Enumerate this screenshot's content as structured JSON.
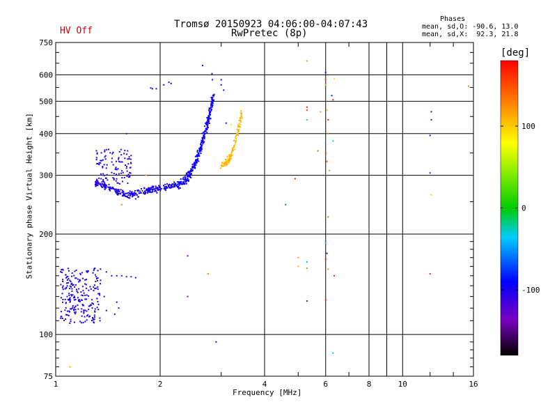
{
  "header": {
    "title_line1": "Tromsø 20150923 04:06:00-04:07:43",
    "title_line2": "RwPretec (8p)",
    "status": "HV Off",
    "legend_title": "Phases",
    "legend_o": "mean, sd,O: -90.6, 13.0",
    "legend_x": "mean, sd,X:  92.3, 21.8"
  },
  "colorbar": {
    "title": "[deg]",
    "ticks": [
      "100",
      "0",
      "-100"
    ],
    "tick_values": [
      100,
      0,
      -100
    ],
    "range": [
      -180,
      180
    ]
  },
  "chart_data": {
    "type": "scatter",
    "xlabel": "Frequency [MHz]",
    "ylabel": "Stationary phase Virtual Height [km]",
    "xscale": "log",
    "yscale": "log",
    "xlim": [
      1,
      16
    ],
    "ylim": [
      75,
      750
    ],
    "xticks": [
      1,
      2,
      4,
      6,
      8,
      10,
      16
    ],
    "xtick_labels": [
      "1",
      "2",
      "4",
      "6",
      "8",
      "10",
      "16"
    ],
    "yticks": [
      75,
      100,
      200,
      300,
      400,
      500,
      600,
      750
    ],
    "ytick_labels": [
      "75",
      "100",
      "200",
      "300",
      "400",
      "500",
      "600",
      "750"
    ],
    "grid": true,
    "clusters": [
      {
        "kind": "curve",
        "f0": 1.3,
        "f1": 2.2,
        "h_start": 285,
        "h_mid": 262,
        "h_end": 280,
        "phase": -100,
        "n": 260,
        "spread": 0.035
      },
      {
        "kind": "rise",
        "f0": 2.2,
        "f1": 2.85,
        "h0": 280,
        "h1": 520,
        "phase": -95,
        "n": 320,
        "spread": 0.045
      },
      {
        "kind": "rise",
        "f0": 3.0,
        "f1": 3.45,
        "h0": 322,
        "h1": 470,
        "phase": 108,
        "n": 130,
        "spread": 0.03
      },
      {
        "kind": "blob",
        "f0": 1.03,
        "f1": 1.35,
        "h0": 108,
        "h1": 158,
        "phase": -100,
        "n": 230
      },
      {
        "kind": "blob",
        "f0": 1.3,
        "f1": 1.65,
        "h0": 280,
        "h1": 360,
        "phase": -102,
        "n": 110
      }
    ],
    "points": [
      {
        "x": 2.65,
        "y": 640,
        "phase": -100
      },
      {
        "x": 2.82,
        "y": 605,
        "phase": -95
      },
      {
        "x": 2.83,
        "y": 580,
        "phase": -92
      },
      {
        "x": 2.15,
        "y": 565,
        "phase": -100
      },
      {
        "x": 2.12,
        "y": 570,
        "phase": -110
      },
      {
        "x": 2.05,
        "y": 560,
        "phase": -100
      },
      {
        "x": 1.9,
        "y": 545,
        "phase": -100
      },
      {
        "x": 1.95,
        "y": 545,
        "phase": -100
      },
      {
        "x": 1.88,
        "y": 548,
        "phase": -100
      },
      {
        "x": 3.0,
        "y": 580,
        "phase": -90
      },
      {
        "x": 3.0,
        "y": 560,
        "phase": -90
      },
      {
        "x": 3.05,
        "y": 540,
        "phase": -100
      },
      {
        "x": 3.1,
        "y": 430,
        "phase": -100
      },
      {
        "x": 3.2,
        "y": 425,
        "phase": 90
      },
      {
        "x": 1.6,
        "y": 400,
        "phase": -80
      },
      {
        "x": 1.82,
        "y": 300,
        "phase": 110
      },
      {
        "x": 1.55,
        "y": 245,
        "phase": 130
      },
      {
        "x": 1.7,
        "y": 255,
        "phase": -100
      },
      {
        "x": 5.3,
        "y": 660,
        "phase": 120
      },
      {
        "x": 6.0,
        "y": 610,
        "phase": -110
      },
      {
        "x": 6.0,
        "y": 580,
        "phase": 150
      },
      {
        "x": 6.35,
        "y": 585,
        "phase": 90
      },
      {
        "x": 6.0,
        "y": 560,
        "phase": 110
      },
      {
        "x": 6.25,
        "y": 520,
        "phase": -80
      },
      {
        "x": 6.3,
        "y": 505,
        "phase": 170
      },
      {
        "x": 5.3,
        "y": 480,
        "phase": 170
      },
      {
        "x": 5.3,
        "y": 470,
        "phase": 160
      },
      {
        "x": 6.05,
        "y": 470,
        "phase": 100
      },
      {
        "x": 5.8,
        "y": 465,
        "phase": 120
      },
      {
        "x": 5.3,
        "y": 440,
        "phase": -30
      },
      {
        "x": 6.1,
        "y": 440,
        "phase": 170
      },
      {
        "x": 6.1,
        "y": 400,
        "phase": 130
      },
      {
        "x": 6.3,
        "y": 380,
        "phase": -20
      },
      {
        "x": 5.7,
        "y": 355,
        "phase": 150
      },
      {
        "x": 6.0,
        "y": 350,
        "phase": 160
      },
      {
        "x": 6.05,
        "y": 330,
        "phase": 150
      },
      {
        "x": 6.15,
        "y": 310,
        "phase": 120
      },
      {
        "x": 4.9,
        "y": 293,
        "phase": 170
      },
      {
        "x": 4.6,
        "y": 245,
        "phase": -60
      },
      {
        "x": 6.1,
        "y": 225,
        "phase": 150
      },
      {
        "x": 6.0,
        "y": 188,
        "phase": -30
      },
      {
        "x": 6.05,
        "y": 175,
        "phase": -110
      },
      {
        "x": 6.0,
        "y": 168,
        "phase": 170
      },
      {
        "x": 5.0,
        "y": 170,
        "phase": 120
      },
      {
        "x": 5.0,
        "y": 160,
        "phase": 110
      },
      {
        "x": 5.3,
        "y": 165,
        "phase": -40
      },
      {
        "x": 5.3,
        "y": 158,
        "phase": 130
      },
      {
        "x": 6.1,
        "y": 157,
        "phase": 120
      },
      {
        "x": 6.35,
        "y": 150,
        "phase": 170
      },
      {
        "x": 6.0,
        "y": 127,
        "phase": 170
      },
      {
        "x": 5.3,
        "y": 126,
        "phase": -110
      },
      {
        "x": 6.3,
        "y": 88,
        "phase": -40
      },
      {
        "x": 2.4,
        "y": 172,
        "phase": -140
      },
      {
        "x": 2.75,
        "y": 152,
        "phase": 130
      },
      {
        "x": 2.4,
        "y": 130,
        "phase": -140
      },
      {
        "x": 2.9,
        "y": 95,
        "phase": -100
      },
      {
        "x": 1.1,
        "y": 80,
        "phase": 110
      },
      {
        "x": 12.1,
        "y": 465,
        "phase": -110
      },
      {
        "x": 12.1,
        "y": 440,
        "phase": -110
      },
      {
        "x": 12.0,
        "y": 395,
        "phase": -110
      },
      {
        "x": 12.0,
        "y": 305,
        "phase": -120
      },
      {
        "x": 12.1,
        "y": 262,
        "phase": 100
      },
      {
        "x": 12.0,
        "y": 152,
        "phase": 170
      },
      {
        "x": 15.5,
        "y": 555,
        "phase": 130
      },
      {
        "x": 1.4,
        "y": 154,
        "phase": -110
      },
      {
        "x": 1.45,
        "y": 150,
        "phase": -110
      },
      {
        "x": 1.5,
        "y": 150,
        "phase": -110
      },
      {
        "x": 1.55,
        "y": 150,
        "phase": -110
      },
      {
        "x": 1.6,
        "y": 149,
        "phase": -110
      },
      {
        "x": 1.65,
        "y": 149,
        "phase": -110
      },
      {
        "x": 1.7,
        "y": 148,
        "phase": -110
      },
      {
        "x": 1.5,
        "y": 125,
        "phase": -100
      },
      {
        "x": 1.52,
        "y": 120,
        "phase": -100
      },
      {
        "x": 1.48,
        "y": 115,
        "phase": -100
      },
      {
        "x": 1.4,
        "y": 118,
        "phase": -100
      },
      {
        "x": 1.38,
        "y": 130,
        "phase": -100
      }
    ]
  }
}
